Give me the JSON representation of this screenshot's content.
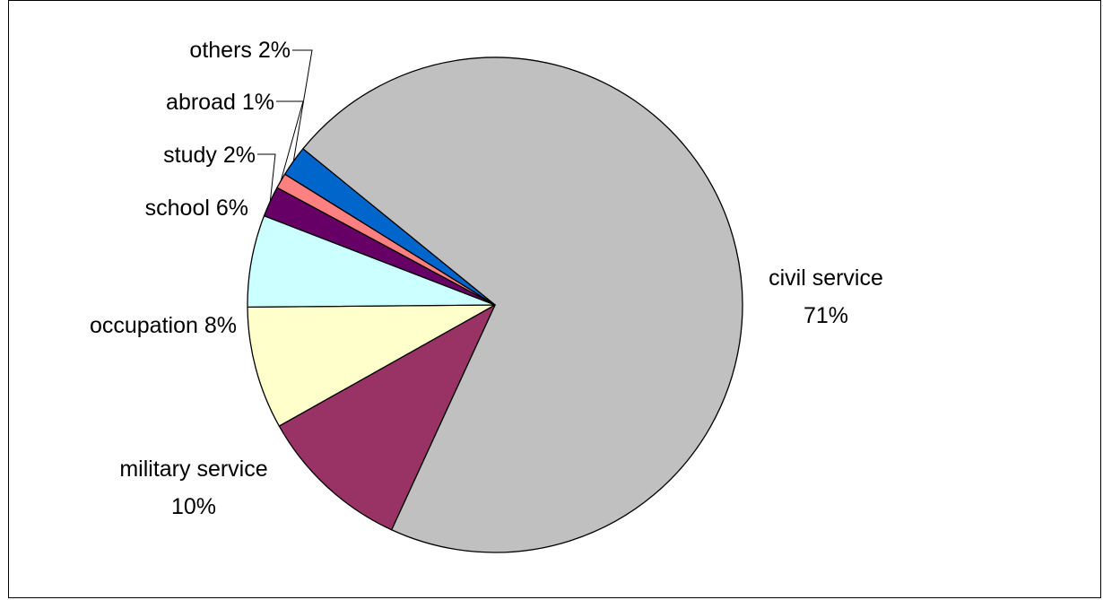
{
  "chart_data": {
    "type": "pie",
    "title": "",
    "legend": "none",
    "slices": [
      {
        "label": "civil service",
        "value": 71,
        "value_label": "71%",
        "color": "#c0c0c0"
      },
      {
        "label": "military service",
        "value": 10,
        "value_label": "10%",
        "color": "#993366"
      },
      {
        "label": "occupation",
        "value": 8,
        "value_label": "8%",
        "color": "#ffffcc"
      },
      {
        "label": "school",
        "value": 6,
        "value_label": "6%",
        "color": "#ccffff"
      },
      {
        "label": "study",
        "value": 2,
        "value_label": "2%",
        "color": "#660066"
      },
      {
        "label": "abroad",
        "value": 1,
        "value_label": "1%",
        "color": "#ff8080"
      },
      {
        "label": "others",
        "value": 2,
        "value_label": "2%",
        "color": "#0066cc"
      }
    ]
  }
}
